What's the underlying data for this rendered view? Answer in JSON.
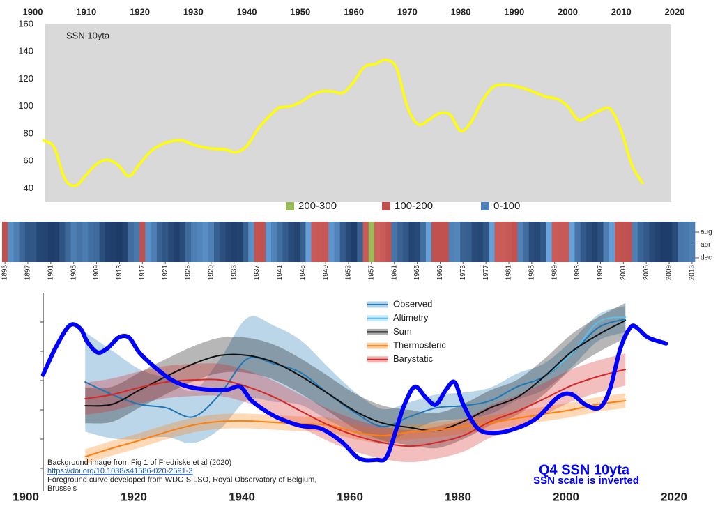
{
  "chart_data": [
    {
      "type": "line",
      "title": "SSN 10yta",
      "xaxis": "top",
      "xlim": [
        1900,
        2020
      ],
      "xticks": [
        1900,
        1910,
        1920,
        1930,
        1940,
        1950,
        1960,
        1970,
        1980,
        1990,
        2000,
        2010,
        2020
      ],
      "ylim": [
        30,
        160
      ],
      "yticks": [
        40,
        60,
        80,
        100,
        120,
        140,
        160
      ],
      "series": [
        {
          "color": "#ffff00",
          "x": [
            1902,
            1904,
            1906,
            1908,
            1910,
            1912,
            1914,
            1916,
            1918,
            1920,
            1922,
            1924,
            1926,
            1928,
            1930,
            1932,
            1934,
            1936,
            1938,
            1940,
            1942,
            1944,
            1946,
            1948,
            1950,
            1952,
            1954,
            1956,
            1958,
            1960,
            1962,
            1964,
            1966,
            1968,
            1970,
            1972,
            1974,
            1976,
            1978,
            1980,
            1982,
            1984,
            1986,
            1988,
            1990,
            1992,
            1994,
            1996,
            1998,
            2000,
            2002,
            2004,
            2006,
            2008,
            2010,
            2012,
            2014
          ],
          "values": [
            75,
            70,
            47,
            42,
            50,
            58,
            61,
            57,
            49,
            58,
            67,
            72,
            74.5,
            75,
            72,
            70,
            69,
            68.5,
            66.5,
            71,
            83,
            92,
            99,
            100,
            103,
            108,
            111,
            111,
            110,
            118,
            129,
            131,
            134,
            128,
            100,
            87,
            90,
            95,
            94,
            82,
            89,
            104,
            114,
            116,
            115,
            113,
            110,
            107,
            105.5,
            100,
            90,
            93,
            97,
            98,
            82,
            57,
            44
          ]
        }
      ]
    },
    {
      "type": "heatmap",
      "legend": [
        {
          "label": "200-300",
          "range": [
            200,
            300
          ],
          "color": "#9bbb59"
        },
        {
          "label": "100-200",
          "range": [
            100,
            200
          ],
          "color": "#c0504d"
        },
        {
          "label": "0-100",
          "range": [
            0,
            100
          ],
          "color": "#4f81bd"
        }
      ],
      "row_labels": [
        "aug",
        "apr",
        "dec"
      ],
      "xlim": [
        1893,
        2014
      ],
      "xticks": [
        1893,
        1897,
        1901,
        1905,
        1909,
        1913,
        1917,
        1921,
        1925,
        1929,
        1933,
        1937,
        1941,
        1945,
        1949,
        1953,
        1957,
        1961,
        1965,
        1969,
        1973,
        1977,
        1981,
        1985,
        1989,
        1993,
        1997,
        2001,
        2005,
        2009,
        2013
      ],
      "x": [
        1893,
        1894,
        1895,
        1896,
        1897,
        1898,
        1899,
        1900,
        1901,
        1902,
        1903,
        1904,
        1905,
        1906,
        1907,
        1908,
        1909,
        1910,
        1911,
        1912,
        1913,
        1914,
        1915,
        1916,
        1917,
        1918,
        1919,
        1920,
        1921,
        1922,
        1923,
        1924,
        1925,
        1926,
        1927,
        1928,
        1929,
        1930,
        1931,
        1932,
        1933,
        1934,
        1935,
        1936,
        1937,
        1938,
        1939,
        1940,
        1941,
        1942,
        1943,
        1944,
        1945,
        1946,
        1947,
        1948,
        1949,
        1950,
        1951,
        1952,
        1953,
        1954,
        1955,
        1956,
        1957,
        1958,
        1959,
        1960,
        1961,
        1962,
        1963,
        1964,
        1965,
        1966,
        1967,
        1968,
        1969,
        1970,
        1971,
        1972,
        1973,
        1974,
        1975,
        1976,
        1977,
        1978,
        1979,
        1980,
        1981,
        1982,
        1983,
        1984,
        1985,
        1986,
        1987,
        1988,
        1989,
        1990,
        1991,
        1992,
        1993,
        1994,
        1995,
        1996,
        1997,
        1998,
        1999,
        2000,
        2001,
        2002,
        2003,
        2004,
        2005,
        2006,
        2007,
        2008,
        2009,
        2010,
        2011,
        2012,
        2013
      ],
      "values": [
        104,
        78,
        64,
        42,
        26,
        27,
        12,
        10,
        3,
        5,
        24,
        42,
        63,
        54,
        62,
        49,
        44,
        19,
        6,
        4,
        1,
        10,
        47,
        57,
        104,
        81,
        64,
        38,
        26,
        14,
        6,
        17,
        44,
        64,
        69,
        78,
        65,
        36,
        21,
        11,
        6,
        9,
        36,
        80,
        114,
        110,
        89,
        68,
        48,
        31,
        16,
        10,
        33,
        93,
        152,
        136,
        135,
        84,
        69,
        31,
        14,
        4,
        38,
        142,
        201,
        185,
        159,
        112,
        54,
        38,
        28,
        10,
        15,
        47,
        94,
        106,
        106,
        105,
        67,
        69,
        38,
        35,
        16,
        13,
        27,
        93,
        155,
        155,
        140,
        116,
        67,
        46,
        18,
        13,
        29,
        98,
        158,
        142,
        146,
        94,
        55,
        30,
        18,
        9,
        22,
        64,
        93,
        120,
        111,
        104,
        64,
        40,
        30,
        15,
        8,
        3,
        3,
        16,
        56,
        58,
        65
      ]
    },
    {
      "type": "line",
      "xaxis": "bottom",
      "legend": "top-center",
      "xlim": [
        1900,
        2020
      ],
      "xticks": [
        1900,
        1920,
        1940,
        1960,
        1980,
        2000,
        2020
      ],
      "ylim": [
        -0.5,
        6
      ],
      "yticks": [
        0,
        1,
        2,
        3,
        4,
        5
      ],
      "ytick_labels": false,
      "y2lim": [
        148.5,
        21
      ],
      "series": [
        {
          "name": "Observed",
          "color": "#1f77b4",
          "x": [
            1911,
            1916,
            1921,
            1926,
            1931,
            1936,
            1941,
            1946,
            1951,
            1956,
            1961,
            1966,
            1971,
            1976,
            1981,
            1986,
            1991,
            1996,
            2001,
            2006,
            2011
          ],
          "values": [
            2.95,
            2.52,
            2.19,
            2.07,
            1.76,
            2.55,
            3.74,
            3.57,
            3.26,
            2.55,
            1.9,
            1.43,
            1.76,
            2.07,
            2.14,
            2.31,
            2.79,
            3.14,
            3.9,
            4.81,
            5.1
          ],
          "errors": [
            1.7,
            1.5,
            1.2,
            1.0,
            0.9,
            1.2,
            1.4,
            1.3,
            1.1,
            0.9,
            0.7,
            0.6,
            0.5,
            0.45,
            0.45,
            0.45,
            0.45,
            0.45,
            0.45,
            0.45,
            0.45
          ]
        },
        {
          "name": "Altimetry",
          "color": "#5bc0eb",
          "x": [
            1996,
            2001,
            2006,
            2011
          ],
          "values": [
            3.14,
            3.9,
            5.0,
            5.17
          ]
        },
        {
          "name": "Sum",
          "color": "#111111",
          "x": [
            1911,
            1916,
            1921,
            1926,
            1931,
            1936,
            1941,
            1946,
            1951,
            1956,
            1961,
            1966,
            1971,
            1976,
            1981,
            1986,
            1991,
            1996,
            2001,
            2006,
            2011
          ],
          "values": [
            2.14,
            2.19,
            2.67,
            3.14,
            3.57,
            3.86,
            3.86,
            3.62,
            3.14,
            2.55,
            1.95,
            1.55,
            1.4,
            1.29,
            1.6,
            2.07,
            2.43,
            3.14,
            3.98,
            4.57,
            5.05
          ],
          "errors": [
            0.6,
            0.6,
            0.6,
            0.6,
            0.6,
            0.6,
            0.6,
            0.6,
            0.6,
            0.6,
            0.6,
            0.6,
            0.6,
            0.6,
            0.6,
            0.6,
            0.6,
            0.6,
            0.6,
            0.6,
            0.6
          ]
        },
        {
          "name": "Thermosteric",
          "color": "#ff7f0e",
          "x": [
            1911,
            1916,
            1921,
            1926,
            1931,
            1936,
            1941,
            1946,
            1951,
            1956,
            1961,
            1966,
            1971,
            1976,
            1981,
            1986,
            1991,
            1996,
            2001,
            2006,
            2011
          ],
          "values": [
            0.4,
            0.69,
            0.95,
            1.24,
            1.48,
            1.6,
            1.62,
            1.57,
            1.52,
            1.48,
            1.24,
            1.12,
            1.24,
            1.31,
            1.43,
            1.55,
            1.71,
            1.86,
            2.0,
            2.19,
            2.31
          ],
          "errors": [
            0.25,
            0.25,
            0.25,
            0.25,
            0.25,
            0.25,
            0.25,
            0.25,
            0.25,
            0.25,
            0.25,
            0.25,
            0.25,
            0.25,
            0.25,
            0.25,
            0.25,
            0.25,
            0.25,
            0.25,
            0.25
          ]
        },
        {
          "name": "Barystatic",
          "color": "#d62728",
          "x": [
            1911,
            1916,
            1921,
            1926,
            1931,
            1936,
            1941,
            1946,
            1951,
            1956,
            1961,
            1966,
            1971,
            1976,
            1981,
            1986,
            1991,
            1996,
            2001,
            2006,
            2011
          ],
          "values": [
            2.38,
            2.52,
            2.76,
            2.95,
            3.02,
            3.02,
            2.79,
            2.43,
            1.95,
            1.48,
            1.12,
            0.88,
            0.76,
            0.88,
            1.12,
            1.6,
            1.95,
            2.38,
            2.83,
            3.14,
            3.38
          ],
          "errors": [
            0.55,
            0.55,
            0.55,
            0.55,
            0.55,
            0.55,
            0.55,
            0.55,
            0.55,
            0.55,
            0.55,
            0.55,
            0.55,
            0.55,
            0.55,
            0.55,
            0.55,
            0.55,
            0.55,
            0.55,
            0.55
          ]
        },
        {
          "name": "Q4 SSN 10yta",
          "color": "#0000ff",
          "axis": "y2",
          "x": [
            1903.2,
            1905.5,
            1908.1,
            1910.1,
            1911.4,
            1913.3,
            1915.2,
            1917.2,
            1919.1,
            1921,
            1923.6,
            1926.8,
            1930.1,
            1933.9,
            1937.2,
            1939.7,
            1941.7,
            1944.3,
            1946.8,
            1950.7,
            1954.6,
            1958.5,
            1961.7,
            1964.9,
            1966.8,
            1968.8,
            1970.1,
            1972,
            1974,
            1975.9,
            1977.8,
            1979.4,
            1981,
            1983.7,
            1986.8,
            1990.7,
            1994.6,
            1998.5,
            2001,
            2003.6,
            2006.2,
            2008.1,
            2010.1,
            2012,
            2013.3,
            2015.2,
            2018.5
          ],
          "values": [
            76,
            58,
            43,
            45,
            54,
            61,
            58,
            51,
            51,
            61,
            70,
            79,
            84,
            86,
            86,
            84,
            93,
            100,
            105,
            110,
            112,
            121,
            132,
            133,
            131,
            110,
            96,
            84,
            91,
            96,
            86,
            81,
            96,
            112,
            115,
            112,
            105,
            91,
            89,
            96,
            98,
            86,
            58,
            44,
            45,
            51,
            55
          ]
        }
      ],
      "annotations": [
        "SSN scale is inverted"
      ],
      "notes": [
        "Background image from Fig 1 of Fredriske et al (2020)",
        "https://doi.org/10.1038/s41586-020-2591-3",
        "Foreground curve developed from WDC-SILSO, Royal Observatory of Belgium,",
        "Brussels"
      ]
    }
  ]
}
